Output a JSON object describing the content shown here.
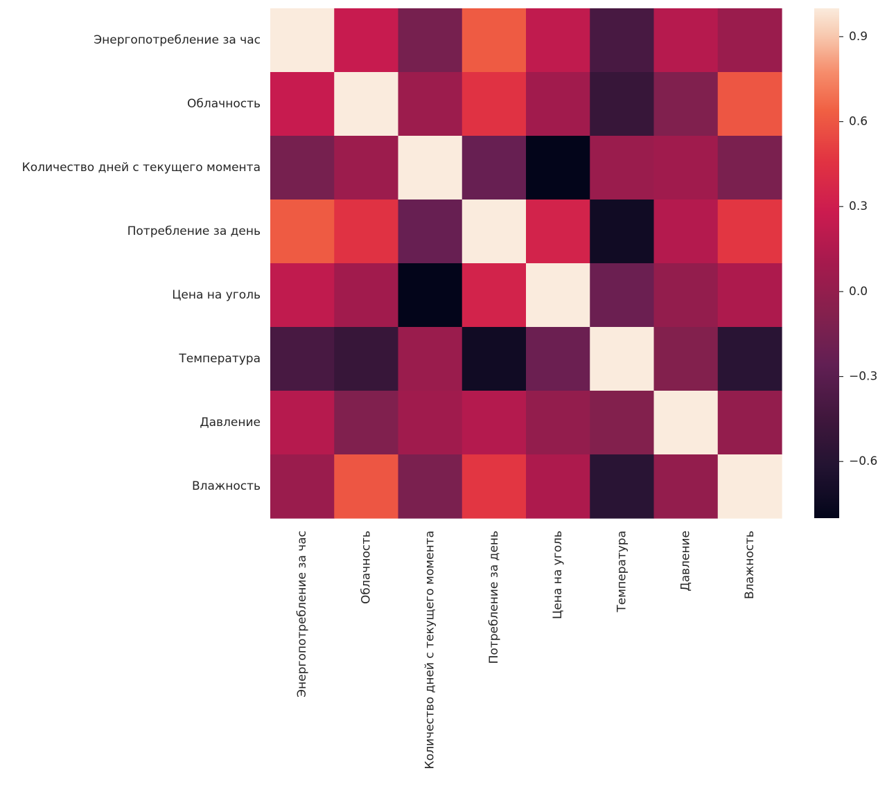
{
  "chart_data": {
    "type": "heatmap",
    "title": "",
    "xlabel": "",
    "ylabel": "",
    "row_labels": [
      "Энергопотребление за час",
      "Облачность",
      "Количество дней с текущего момента",
      "Потребление за день",
      "Цена на уголь",
      "Температура",
      "Давление",
      "Влажность"
    ],
    "col_labels": [
      "Энергопотребление за час",
      "Облачность",
      "Количество дней с текущего момента",
      "Потребление за день",
      "Цена на уголь",
      "Температура",
      "Давление",
      "Влажность"
    ],
    "values": [
      [
        1.0,
        0.26,
        -0.15,
        0.62,
        0.23,
        -0.4,
        0.18,
        0.04
      ],
      [
        0.26,
        1.0,
        0.05,
        0.45,
        0.08,
        -0.5,
        -0.1,
        0.6
      ],
      [
        -0.15,
        0.05,
        1.0,
        -0.23,
        -0.8,
        0.04,
        0.07,
        -0.13
      ],
      [
        0.62,
        0.45,
        -0.23,
        1.0,
        0.34,
        -0.72,
        0.17,
        0.47
      ],
      [
        0.23,
        0.08,
        -0.8,
        0.34,
        1.0,
        -0.21,
        0.0,
        0.14
      ],
      [
        -0.4,
        -0.5,
        0.04,
        -0.72,
        -0.21,
        1.0,
        -0.09,
        -0.58
      ],
      [
        0.18,
        -0.1,
        0.07,
        0.17,
        0.0,
        -0.09,
        1.0,
        0.0
      ],
      [
        0.04,
        0.6,
        -0.13,
        0.47,
        0.14,
        -0.58,
        0.0,
        1.0
      ]
    ],
    "colorbar": {
      "vmin": -0.8,
      "vmax": 1.0,
      "ticks": [
        0.9,
        0.6,
        0.3,
        0.0,
        -0.3,
        -0.6
      ],
      "tick_labels": [
        "0.9",
        "0.6",
        "0.3",
        "0.0",
        "−0.3",
        "−0.6"
      ]
    },
    "colormap": "rocket"
  }
}
